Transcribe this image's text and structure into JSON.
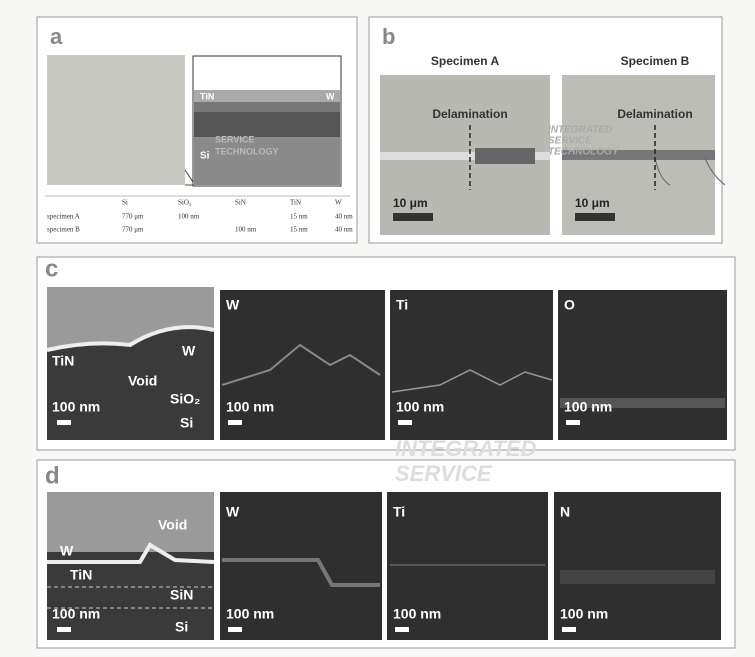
{
  "panel_a": {
    "label": "a",
    "inset_labels": [
      "TiN",
      "W",
      "Si"
    ],
    "watermark": [
      "SERVICE",
      "TECHNOLOGY"
    ],
    "table": {
      "header": [
        "Si",
        "SiO₂",
        "SiN",
        "TiN",
        "W"
      ],
      "rows": [
        [
          "specimen A",
          "770 μm",
          "100 nm",
          null,
          "15 nm",
          "40 nm"
        ],
        [
          "specimen B",
          "770 μm",
          null,
          "100 nm",
          "15 nm",
          "40 nm"
        ]
      ]
    }
  },
  "panel_b": {
    "label": "b",
    "specimens": [
      {
        "title": "Specimen A",
        "annotation": "Delamination",
        "scale": "10 μm"
      },
      {
        "title": "Specimen B",
        "annotation": "Delamination",
        "scale": "10 μm"
      }
    ],
    "watermark": [
      "INTEGRATED",
      "SERVICE",
      "TECHNOLOGY"
    ]
  },
  "panel_c": {
    "label": "c",
    "image_labels": [
      "TiN",
      "W",
      "Void",
      "SiO₂",
      "Si"
    ],
    "scale": "100 nm",
    "maps": [
      {
        "element": "W",
        "scale": "100 nm"
      },
      {
        "element": "Ti",
        "scale": "100 nm"
      },
      {
        "element": "O",
        "scale": "100 nm"
      }
    ]
  },
  "panel_d": {
    "label": "d",
    "image_labels": [
      "W",
      "Void",
      "TiN",
      "SiN",
      "Si"
    ],
    "scale": "100 nm",
    "maps": [
      {
        "element": "W",
        "scale": "100 nm"
      },
      {
        "element": "Ti",
        "scale": "100 nm"
      },
      {
        "element": "N",
        "scale": "100 nm"
      }
    ]
  },
  "watermark": [
    "INTEGRATED",
    "SERVICE"
  ]
}
